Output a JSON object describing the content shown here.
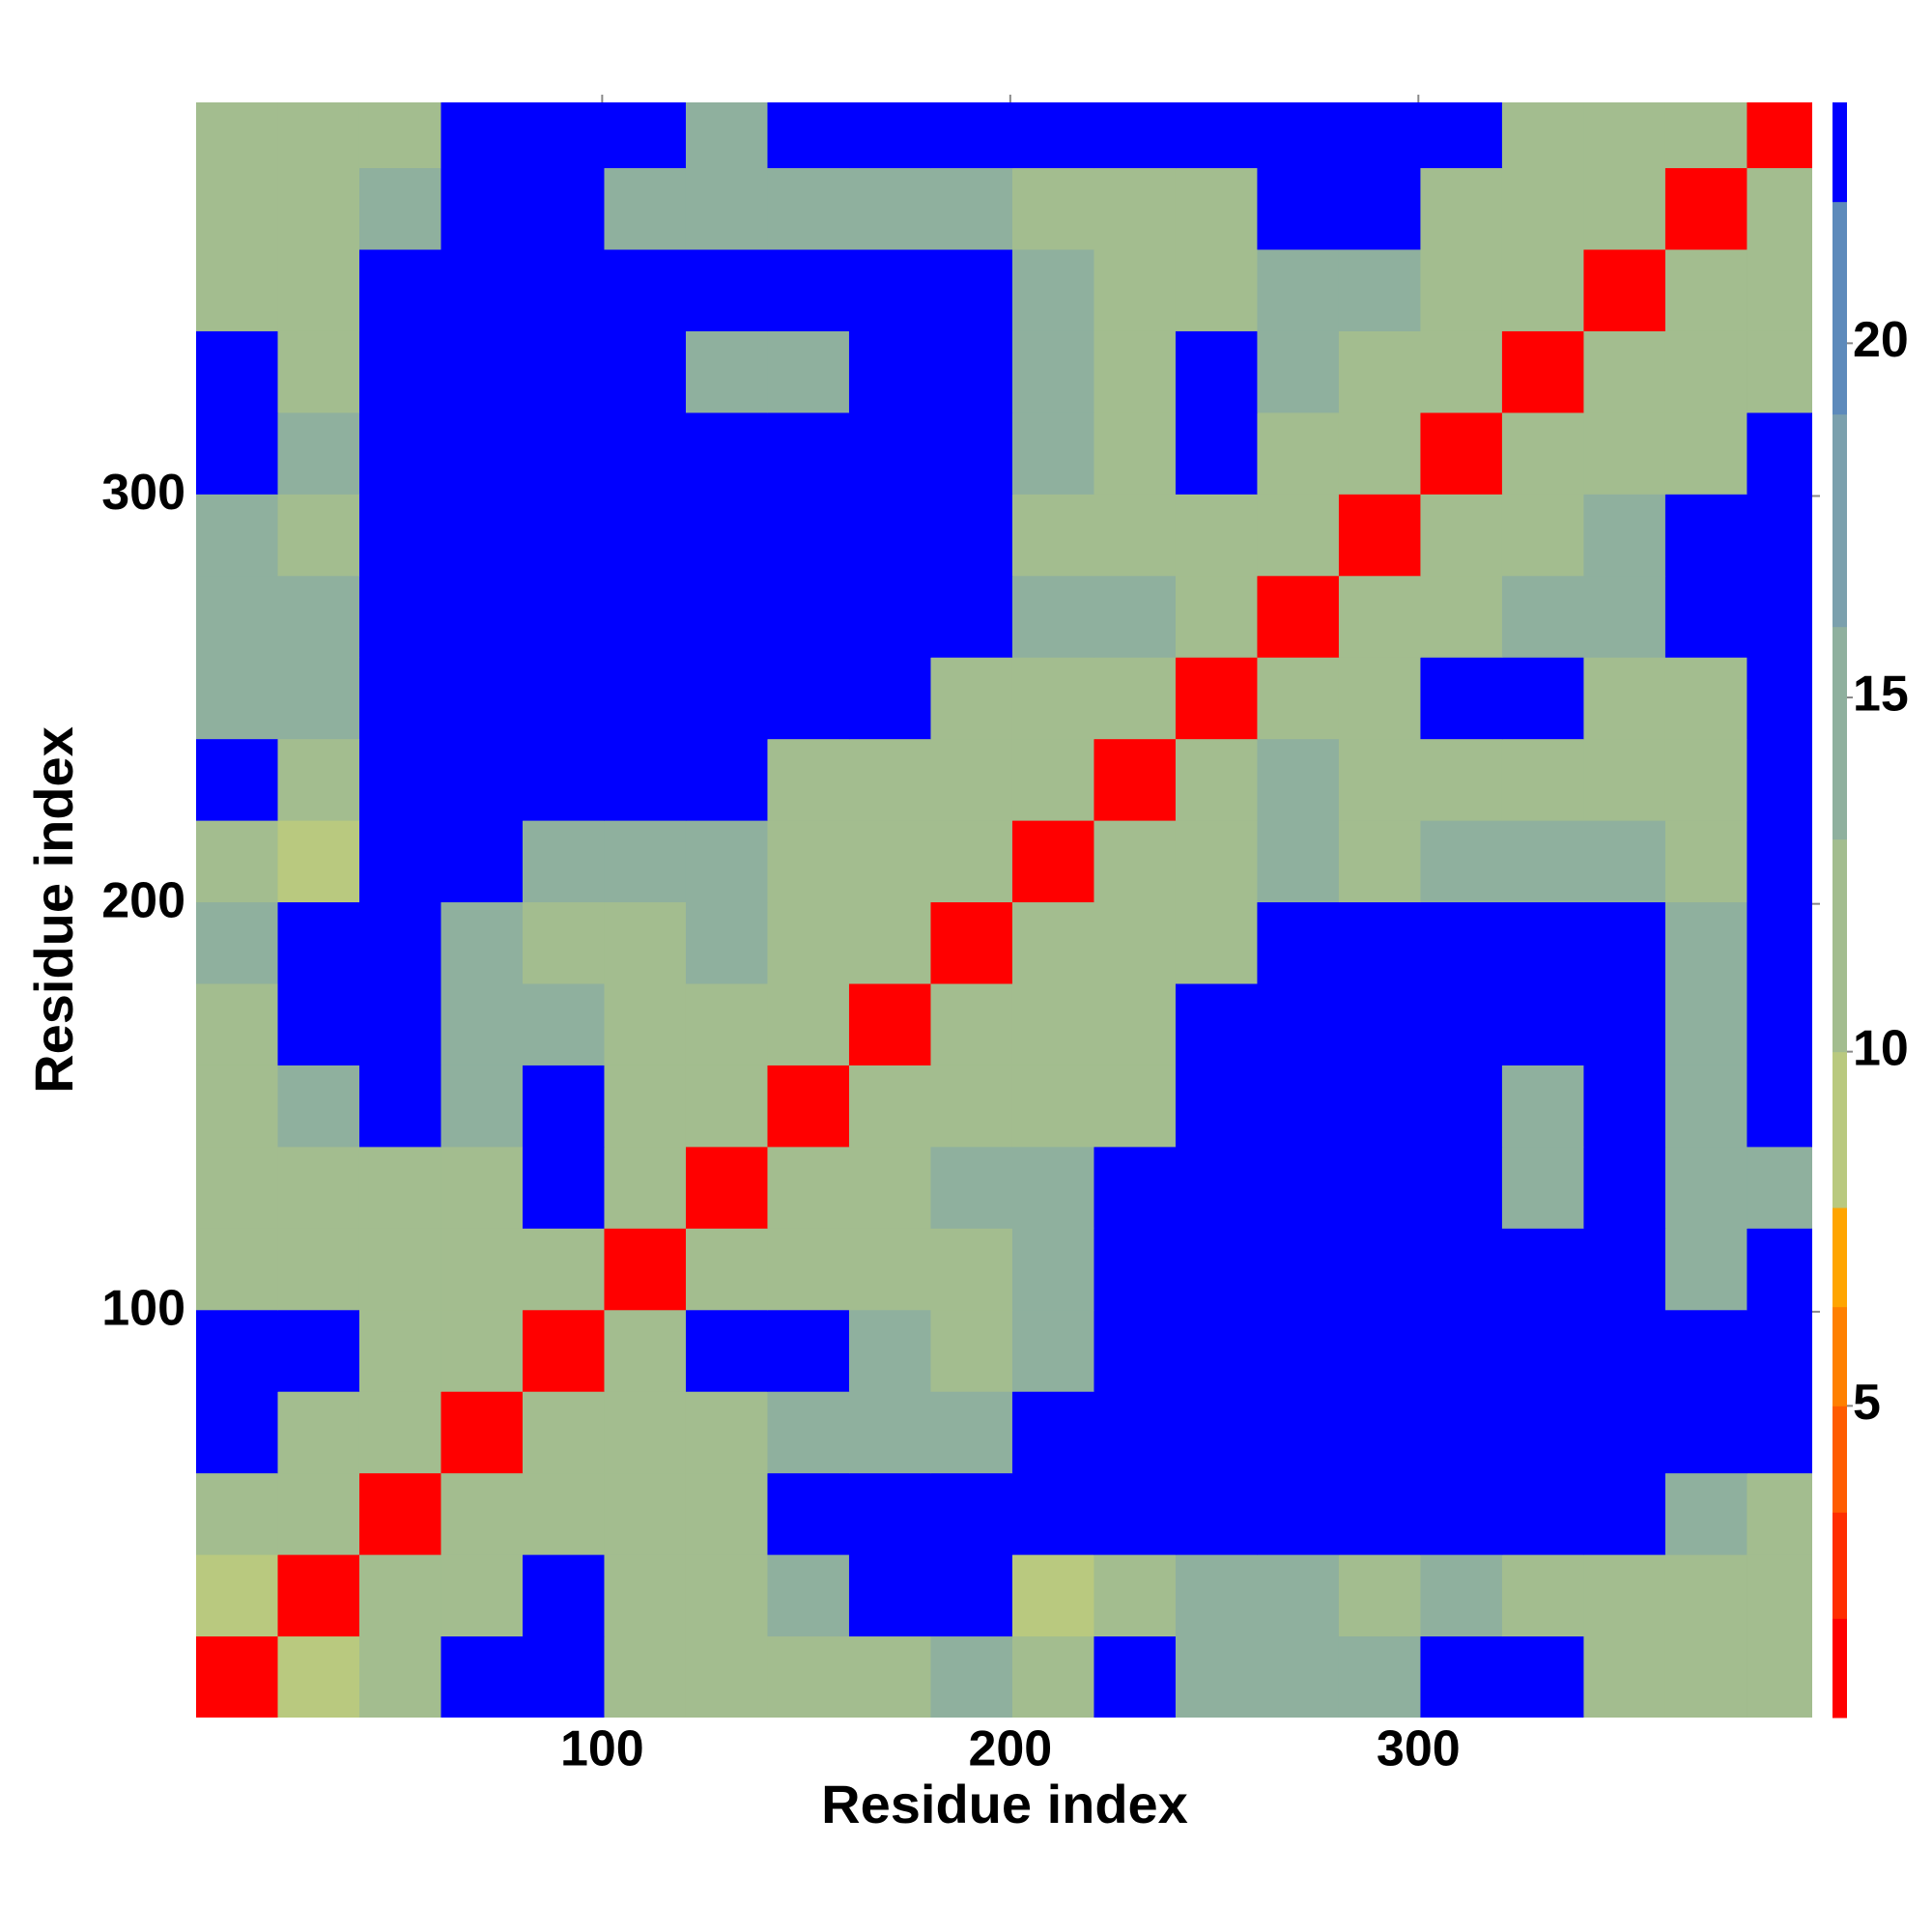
{
  "chart_data": {
    "type": "heatmap",
    "xlabel": "Residue index",
    "ylabel": "Residue index",
    "xlim": [
      0.5,
      396.5
    ],
    "ylim": [
      0.5,
      396.5
    ],
    "xticks": [
      100,
      200,
      300
    ],
    "yticks": [
      100,
      200,
      300
    ],
    "xbins": [
      0.5,
      20.5,
      40.5,
      60.5,
      80.5,
      100.5,
      120.5,
      140.5,
      160.5,
      180.5,
      200.5,
      220.5,
      240.5,
      260.5,
      280.5,
      300.5,
      320.5,
      340.5,
      360.5,
      380.5,
      400.5
    ],
    "ybins": [
      0.5,
      20.5,
      40.5,
      60.5,
      80.5,
      100.5,
      120.5,
      140.5,
      160.5,
      180.5,
      200.5,
      220.5,
      240.5,
      260.5,
      280.5,
      300.5,
      320.5,
      340.5,
      360.5,
      380.5,
      400.5
    ],
    "z": [
      [
        1.5,
        9,
        12,
        22.7,
        22.7,
        12,
        12,
        12,
        12,
        16,
        12,
        22.7,
        16,
        16,
        16,
        22.7,
        22.7,
        12,
        12,
        12
      ],
      [
        9,
        1.5,
        12,
        12,
        22.7,
        12,
        12,
        16,
        22.7,
        22.7,
        9,
        12,
        16,
        16,
        12,
        16,
        12,
        12,
        12,
        12
      ],
      [
        12,
        12,
        1.5,
        12,
        12,
        12,
        12,
        22.7,
        22.7,
        22.7,
        22.7,
        22.7,
        22.7,
        22.7,
        22.7,
        22.7,
        22.7,
        22.7,
        16,
        12
      ],
      [
        22.7,
        12,
        12,
        1.5,
        12,
        12,
        12,
        16,
        16,
        16,
        22.7,
        22.7,
        22.7,
        22.7,
        22.7,
        22.7,
        22.7,
        22.7,
        22.7,
        22.7
      ],
      [
        22.7,
        22.7,
        12,
        12,
        1.5,
        12,
        22.7,
        22.7,
        16,
        12,
        16,
        22.7,
        22.7,
        22.7,
        22.7,
        22.7,
        22.7,
        22.7,
        22.7,
        22.7
      ],
      [
        12,
        12,
        12,
        12,
        12,
        1.5,
        12,
        12,
        12,
        12,
        16,
        22.7,
        22.7,
        22.7,
        22.7,
        22.7,
        22.7,
        22.7,
        16,
        22.7
      ],
      [
        12,
        12,
        12,
        12,
        22.7,
        12,
        1.5,
        12,
        12,
        16,
        16,
        22.7,
        22.7,
        22.7,
        22.7,
        22.7,
        16,
        22.7,
        16,
        16
      ],
      [
        12,
        16,
        22.7,
        16,
        22.7,
        12,
        12,
        1.5,
        12,
        12,
        12,
        12,
        22.7,
        22.7,
        22.7,
        22.7,
        16,
        22.7,
        16,
        22.7
      ],
      [
        12,
        22.7,
        22.7,
        16,
        16,
        12,
        12,
        12,
        1.5,
        12,
        12,
        12,
        22.7,
        22.7,
        22.7,
        22.7,
        22.7,
        22.7,
        16,
        22.7
      ],
      [
        16,
        22.7,
        22.7,
        16,
        12,
        12,
        16,
        12,
        12,
        1.5,
        12,
        12,
        12,
        22.7,
        22.7,
        22.7,
        22.7,
        22.7,
        16,
        22.7
      ],
      [
        12,
        9,
        22.7,
        22.7,
        16,
        16,
        16,
        12,
        12,
        12,
        1.5,
        12,
        12,
        16,
        12,
        16,
        16,
        16,
        12,
        22.7
      ],
      [
        22.7,
        12,
        22.7,
        22.7,
        22.7,
        22.7,
        22.7,
        12,
        12,
        12,
        12,
        1.5,
        12,
        16,
        12,
        12,
        12,
        12,
        12,
        22.7
      ],
      [
        16,
        16,
        22.7,
        22.7,
        22.7,
        22.7,
        22.7,
        22.7,
        22.7,
        12,
        12,
        12,
        1.5,
        12,
        12,
        22.7,
        22.7,
        12,
        12,
        22.7
      ],
      [
        16,
        16,
        22.7,
        22.7,
        22.7,
        22.7,
        22.7,
        22.7,
        22.7,
        22.7,
        16,
        16,
        12,
        1.5,
        12,
        12,
        16,
        16,
        22.7,
        22.7
      ],
      [
        16,
        12,
        22.7,
        22.7,
        22.7,
        22.7,
        22.7,
        22.7,
        22.7,
        22.7,
        12,
        12,
        12,
        12,
        1.5,
        12,
        12,
        16,
        22.7,
        22.7
      ],
      [
        22.7,
        16,
        22.7,
        22.7,
        22.7,
        22.7,
        22.7,
        22.7,
        22.7,
        22.7,
        16,
        12,
        22.7,
        12,
        12,
        1.5,
        12,
        12,
        12,
        22.7
      ],
      [
        22.7,
        12,
        22.7,
        22.7,
        22.7,
        22.7,
        16,
        16,
        22.7,
        22.7,
        16,
        12,
        22.7,
        16,
        12,
        12,
        1.5,
        12,
        12,
        12
      ],
      [
        12,
        12,
        22.7,
        22.7,
        22.7,
        22.7,
        22.7,
        22.7,
        22.7,
        22.7,
        16,
        12,
        12,
        16,
        16,
        12,
        12,
        1.5,
        12,
        12
      ],
      [
        12,
        12,
        16,
        22.7,
        22.7,
        16,
        16,
        16,
        16,
        16,
        12,
        12,
        12,
        22.7,
        22.7,
        12,
        12,
        12,
        1.5,
        12
      ],
      [
        12,
        12,
        12,
        22.7,
        22.7,
        22.7,
        16,
        22.7,
        22.7,
        22.7,
        22.7,
        22.7,
        22.7,
        22.7,
        22.7,
        22.7,
        12,
        12,
        12,
        1.5
      ]
    ],
    "colorbar": {
      "lim": [
        0.6,
        23.4
      ],
      "ticks": [
        5,
        10,
        15,
        20
      ],
      "levels": [
        0.6,
        2,
        3.5,
        5,
        6.4,
        7.8,
        10,
        13,
        16,
        19,
        22,
        23.4
      ],
      "colors": [
        "#ff0000",
        "#ff2e00",
        "#ff5c00",
        "#ff8000",
        "#ffa500",
        "#b9c97f",
        "#a3bd8f",
        "#8fb09e",
        "#7ba0ad",
        "#5d8abb",
        "#0000ff"
      ]
    }
  }
}
